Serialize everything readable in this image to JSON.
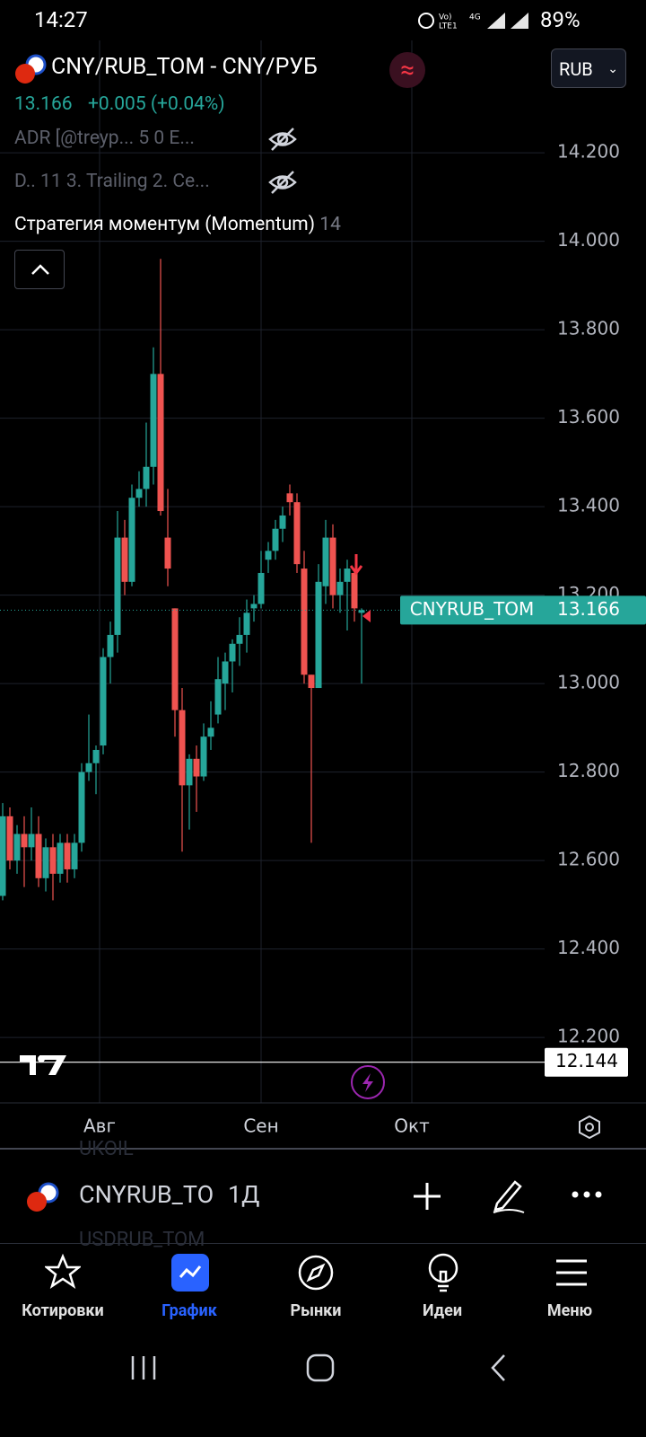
{
  "status_bar": {
    "time": "14:27",
    "battery": "89%"
  },
  "header": {
    "symbol": "CNY/RUB_TOM - CNY/РУБ",
    "currency": "RUB",
    "price": "13.166",
    "change": "+0.005 (+0.04%)"
  },
  "indicators": [
    "ADR [@treyp...   5 0 E...",
    "D.. 11 3. Trailing 2. Ce..."
  ],
  "strategy": {
    "name": "Стратегия моментум (Momentum)",
    "value": "14"
  },
  "chart_data": {
    "type": "candlestick",
    "open": [
      12.52,
      12.7,
      12.6,
      12.66,
      12.63,
      12.66,
      12.56,
      12.63,
      12.57,
      12.64,
      12.58,
      12.64,
      12.8,
      12.82,
      12.86,
      13.06,
      13.11,
      13.33,
      13.23,
      13.42,
      13.44,
      13.49,
      13.7,
      13.33,
      13.17,
      12.94,
      12.77,
      12.83,
      12.79,
      12.88,
      12.93,
      13.0,
      13.05,
      13.09,
      13.11,
      13.17,
      13.18,
      13.28,
      13.3,
      13.35,
      13.43,
      13.41,
      13.26,
      13.02,
      12.99,
      13.22,
      13.33,
      13.2,
      13.23,
      13.25,
      13.16
    ],
    "high": [
      12.73,
      12.72,
      12.68,
      12.7,
      12.72,
      12.7,
      12.65,
      12.66,
      12.66,
      12.66,
      12.66,
      12.82,
      12.93,
      12.86,
      13.08,
      13.14,
      13.39,
      13.37,
      13.45,
      13.48,
      13.59,
      13.76,
      13.96,
      13.44,
      13.17,
      12.99,
      12.84,
      12.86,
      12.91,
      12.96,
      13.06,
      13.07,
      13.1,
      13.15,
      13.19,
      13.2,
      13.3,
      13.32,
      13.37,
      13.4,
      13.45,
      13.43,
      13.3,
      13.02,
      13.27,
      13.37,
      13.36,
      13.26,
      13.28,
      13.26,
      13.17
    ],
    "low": [
      12.51,
      12.58,
      12.57,
      12.54,
      12.6,
      12.54,
      12.53,
      12.51,
      12.55,
      12.55,
      12.56,
      12.62,
      12.78,
      12.75,
      12.84,
      13.0,
      13.07,
      13.2,
      13.22,
      13.4,
      13.4,
      13.45,
      13.38,
      13.22,
      12.88,
      12.62,
      12.67,
      12.71,
      12.78,
      12.85,
      12.91,
      12.94,
      12.98,
      13.04,
      13.07,
      13.14,
      13.17,
      13.25,
      13.28,
      13.32,
      13.38,
      13.25,
      13.0,
      12.64,
      12.99,
      13.18,
      13.17,
      13.16,
      13.12,
      13.14,
      13.0
    ],
    "close": [
      12.7,
      12.6,
      12.66,
      12.63,
      12.66,
      12.56,
      12.63,
      12.57,
      12.64,
      12.58,
      12.64,
      12.8,
      12.82,
      12.85,
      13.06,
      13.11,
      13.33,
      13.23,
      13.42,
      13.44,
      13.49,
      13.7,
      13.39,
      13.26,
      12.94,
      12.77,
      12.83,
      12.79,
      12.88,
      12.9,
      13.01,
      13.05,
      13.09,
      13.11,
      13.16,
      13.18,
      13.25,
      13.3,
      13.35,
      13.38,
      13.41,
      13.27,
      13.02,
      12.99,
      13.23,
      13.33,
      13.2,
      13.23,
      13.26,
      13.17,
      13.166
    ],
    "up_color": "#26a69a",
    "down_color": "#ef5350",
    "xlim": [
      -0.375,
      75.5
    ],
    "xticks": [
      {
        "value": 13.5,
        "label": "Авг"
      },
      {
        "value": 36,
        "label": "Сен"
      },
      {
        "value": 57,
        "label": "Окт"
      }
    ],
    "ylim": [
      12.052,
      14.454
    ],
    "yticks": [
      {
        "value": 12.2,
        "label": "12.200"
      },
      {
        "value": 12.4,
        "label": "12.400"
      },
      {
        "value": 12.6,
        "label": "12.600"
      },
      {
        "value": 12.8,
        "label": "12.800"
      },
      {
        "value": 13,
        "label": "13.000"
      },
      {
        "value": 13.2,
        "label": "13.200"
      },
      {
        "value": 13.4,
        "label": "13.400"
      },
      {
        "value": 13.6,
        "label": "13.600"
      },
      {
        "value": 13.8,
        "label": "13.800"
      },
      {
        "value": 14,
        "label": "14.000"
      },
      {
        "value": 14.2,
        "label": "14.200"
      }
    ],
    "grid": true,
    "last_price": 13.166,
    "last_price_label": "CNYRUB_TOM",
    "crosshair": 12.144
  },
  "toolbar": {
    "symbol": "CNYRUB_TOM",
    "interval": "1Д",
    "ghost_above": "UKOIL",
    "ghost_below": "USDRUB_TOM"
  },
  "nav": [
    "Котировки",
    "График",
    "Рынки",
    "Идеи",
    "Меню"
  ]
}
